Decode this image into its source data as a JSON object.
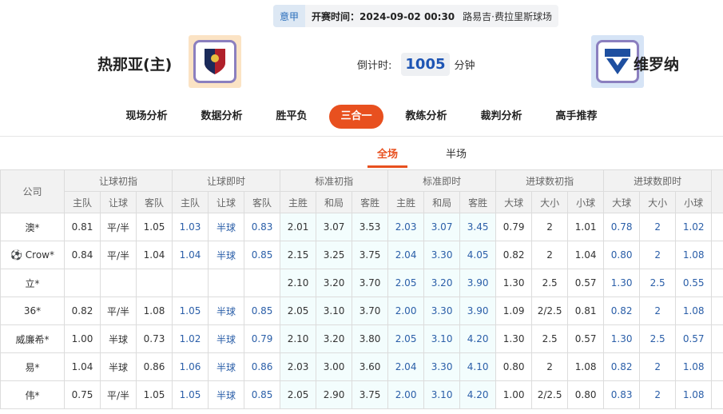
{
  "match": {
    "league": "意甲",
    "time": "开赛时间：2024-09-02 00:30",
    "venue": "路易吉·费拉里斯球场",
    "home": "热那亚(主)",
    "away": "维罗纳",
    "countdown_label": "倒计时:",
    "countdown_value": "1005",
    "countdown_unit": "分钟"
  },
  "nav": [
    "现场分析",
    "数据分析",
    "胜平负",
    "三合一",
    "教练分析",
    "裁判分析",
    "高手推荐"
  ],
  "nav_active": 3,
  "subtabs": [
    "全场",
    "半场"
  ],
  "table": {
    "company_header": "公司",
    "groups": [
      "让球初指",
      "让球即时",
      "标准初指",
      "标准即时",
      "进球数初指",
      "进球数即时"
    ],
    "subheaders": [
      "主队",
      "让球",
      "客队",
      "主队",
      "让球",
      "客队",
      "主胜",
      "和局",
      "客胜",
      "主胜",
      "和局",
      "客胜",
      "大球",
      "大小",
      "小球",
      "大球",
      "大小",
      "小球"
    ],
    "rows": [
      {
        "company": "澳*",
        "v": [
          "0.81",
          "平/半",
          "1.05",
          "1.03",
          "半球",
          "0.83",
          "2.01",
          "3.07",
          "3.53",
          "2.03",
          "3.07",
          "3.45",
          "0.79",
          "2",
          "1.01",
          "0.78",
          "2",
          "1.02"
        ]
      },
      {
        "company": "Crow*",
        "v": [
          "0.84",
          "平/半",
          "1.04",
          "1.04",
          "半球",
          "0.85",
          "2.15",
          "3.25",
          "3.75",
          "2.04",
          "3.30",
          "4.05",
          "0.82",
          "2",
          "1.04",
          "0.80",
          "2",
          "1.08"
        ]
      },
      {
        "company": "立*",
        "v": [
          "",
          "",
          "",
          "",
          "",
          "",
          "2.10",
          "3.20",
          "3.70",
          "2.05",
          "3.20",
          "3.90",
          "1.30",
          "2.5",
          "0.57",
          "1.30",
          "2.5",
          "0.55"
        ]
      },
      {
        "company": "36*",
        "v": [
          "0.82",
          "平/半",
          "1.08",
          "1.05",
          "半球",
          "0.85",
          "2.05",
          "3.10",
          "3.70",
          "2.00",
          "3.30",
          "3.90",
          "1.09",
          "2/2.5",
          "0.81",
          "0.82",
          "2",
          "1.08"
        ]
      },
      {
        "company": "威廉希*",
        "v": [
          "1.00",
          "半球",
          "0.73",
          "1.02",
          "半球",
          "0.79",
          "2.10",
          "3.20",
          "3.80",
          "2.05",
          "3.10",
          "4.20",
          "1.30",
          "2.5",
          "0.57",
          "1.30",
          "2.5",
          "0.57"
        ]
      },
      {
        "company": "易*",
        "v": [
          "1.04",
          "半球",
          "0.86",
          "1.06",
          "半球",
          "0.86",
          "2.03",
          "3.00",
          "3.60",
          "2.04",
          "3.30",
          "4.10",
          "0.80",
          "2",
          "1.08",
          "0.82",
          "2",
          "1.08"
        ]
      },
      {
        "company": "伟*",
        "v": [
          "0.75",
          "平/半",
          "1.05",
          "1.05",
          "半球",
          "0.85",
          "2.05",
          "2.90",
          "3.75",
          "2.00",
          "3.10",
          "4.20",
          "1.00",
          "2/2.5",
          "0.80",
          "0.83",
          "2",
          "1.08"
        ]
      }
    ]
  }
}
